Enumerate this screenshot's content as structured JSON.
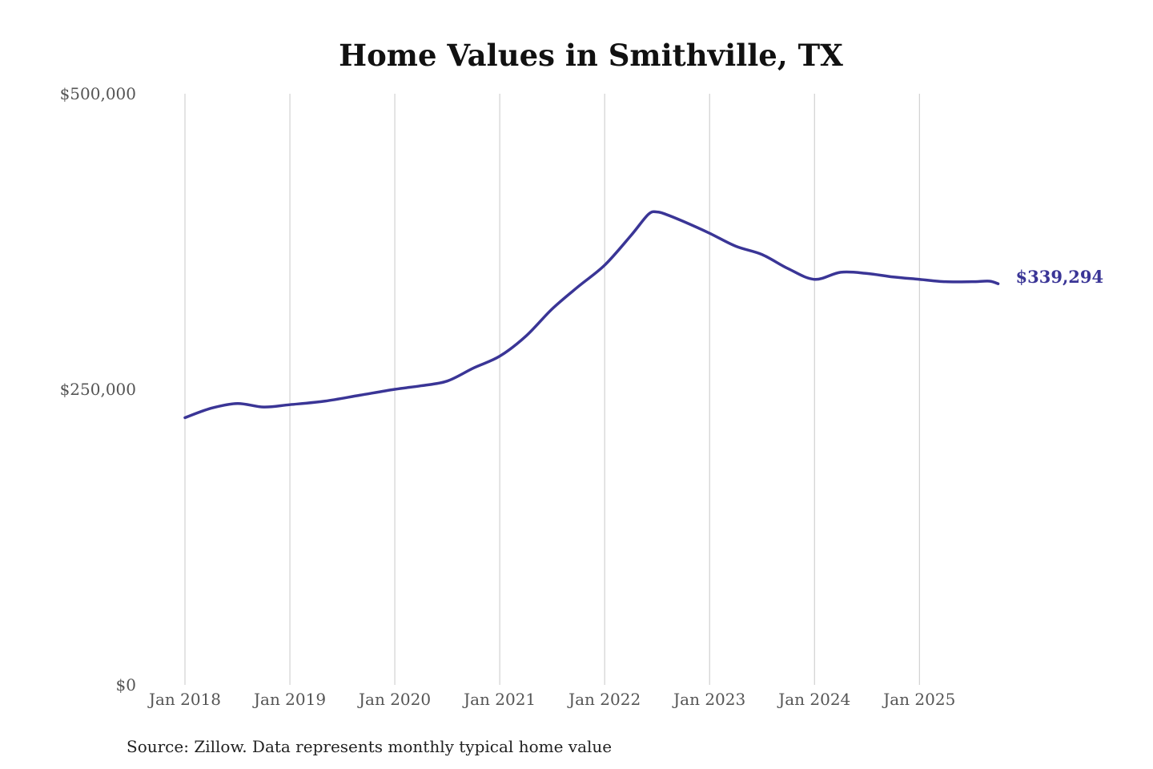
{
  "chart_data": {
    "type": "line",
    "title": "Home Values in Smithville, TX",
    "source": "Source: Zillow. Data represents monthly typical home value",
    "ylim": [
      0,
      500000
    ],
    "y_ticks": [
      0,
      250000,
      500000
    ],
    "y_tick_labels": [
      "$0",
      "$250,000",
      "$500,000"
    ],
    "x_tick_labels": [
      "Jan 2018",
      "Jan 2019",
      "Jan 2020",
      "Jan 2021",
      "Jan 2022",
      "Jan 2023",
      "Jan 2024",
      "Jan 2025"
    ],
    "x_ticks": [
      "2018-01",
      "2019-01",
      "2020-01",
      "2021-01",
      "2022-01",
      "2023-01",
      "2024-01",
      "2025-01"
    ],
    "grid": "vertical",
    "line_color": "#3a3596",
    "end_label": "$339,294",
    "series": [
      {
        "x": [
          "2018-01",
          "2018-04",
          "2018-07",
          "2018-10",
          "2019-01",
          "2019-05",
          "2019-09",
          "2020-01",
          "2020-04",
          "2020-07",
          "2020-10",
          "2021-01",
          "2021-04",
          "2021-07",
          "2021-10",
          "2022-01",
          "2022-04",
          "2022-06",
          "2022-07",
          "2022-08",
          "2022-10",
          "2023-01",
          "2023-04",
          "2023-07",
          "2023-10",
          "2024-01",
          "2024-04",
          "2024-07",
          "2024-10",
          "2025-01",
          "2025-04",
          "2025-07",
          "2025-09",
          "2025-10"
        ],
        "y": [
          226000,
          234000,
          238000,
          235000,
          237000,
          240000,
          245000,
          250000,
          253000,
          257000,
          268000,
          278000,
          295000,
          318000,
          337000,
          355000,
          380000,
          398000,
          400000,
          398000,
          392000,
          382000,
          371000,
          364000,
          352000,
          343000,
          349000,
          348000,
          345000,
          343000,
          341000,
          341000,
          341500,
          339294
        ]
      }
    ]
  }
}
